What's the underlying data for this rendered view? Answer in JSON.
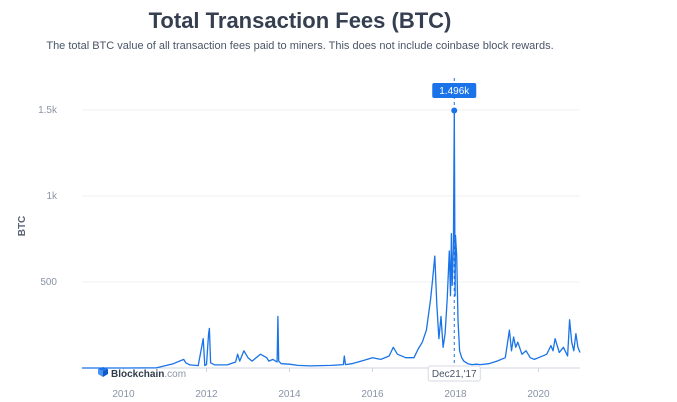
{
  "title": "Total Transaction Fees (BTC)",
  "subtitle": "The total BTC value of all transaction fees paid to miners. This does not include coinbase block rewards.",
  "brand": {
    "name": "Blockchain",
    "suffix": ".com",
    "logo": "blockchain-cube-icon"
  },
  "colors": {
    "line": "#1a73e8",
    "tooltip": "#1a73e8",
    "grid": "#eef0f3",
    "axis": "#cfd5dd"
  },
  "tooltip": {
    "value_label": "1.496k",
    "date_label": "Dec21,'17"
  },
  "chart_data": {
    "type": "line",
    "ylabel": "BTC",
    "xlabel": "",
    "xlim": [
      2009.0,
      2021.0
    ],
    "ylim": [
      0,
      1650
    ],
    "x_ticks": [
      2010,
      2012,
      2014,
      2016,
      2018,
      2020
    ],
    "x_tick_labels": [
      "2010",
      "2012",
      "2014",
      "2016",
      "2018",
      "2020"
    ],
    "y_ticks": [
      500,
      1000,
      1500
    ],
    "y_tick_labels": [
      "500",
      "1k",
      "1.5k"
    ],
    "grid": true,
    "series": [
      {
        "x": [
          2009.0,
          2010.0,
          2010.8,
          2011.2,
          2011.45,
          2011.5,
          2011.6,
          2011.8,
          2011.92,
          2011.96,
          2012.0,
          2012.05,
          2012.07,
          2012.1,
          2012.2,
          2012.5,
          2012.7,
          2012.75,
          2012.8,
          2012.9,
          2013.0,
          2013.1,
          2013.3,
          2013.45,
          2013.5,
          2013.6,
          2013.7,
          2013.72,
          2013.74,
          2013.8,
          2014.0,
          2014.2,
          2014.5,
          2015.0,
          2015.3,
          2015.32,
          2015.35,
          2015.5,
          2015.8,
          2016.0,
          2016.2,
          2016.4,
          2016.5,
          2016.6,
          2016.8,
          2017.0,
          2017.1,
          2017.2,
          2017.3,
          2017.4,
          2017.45,
          2017.5,
          2017.55,
          2017.6,
          2017.65,
          2017.7,
          2017.75,
          2017.8,
          2017.85,
          2017.88,
          2017.9,
          2017.92,
          2017.95,
          2017.97,
          2017.99,
          2018.0,
          2018.03,
          2018.06,
          2018.1,
          2018.15,
          2018.2,
          2018.3,
          2018.4,
          2018.5,
          2018.6,
          2018.8,
          2019.0,
          2019.2,
          2019.3,
          2019.35,
          2019.4,
          2019.45,
          2019.5,
          2019.6,
          2019.7,
          2019.8,
          2019.9,
          2020.0,
          2020.2,
          2020.3,
          2020.35,
          2020.4,
          2020.5,
          2020.6,
          2020.7,
          2020.75,
          2020.8,
          2020.85,
          2020.9,
          2020.95,
          2021.0
        ],
        "y": [
          0,
          0,
          1,
          25,
          50,
          30,
          18,
          14,
          170,
          14,
          20,
          200,
          230,
          30,
          18,
          18,
          35,
          80,
          40,
          100,
          60,
          40,
          80,
          60,
          40,
          50,
          35,
          300,
          40,
          25,
          22,
          15,
          12,
          15,
          20,
          70,
          20,
          25,
          45,
          60,
          50,
          70,
          120,
          80,
          60,
          60,
          110,
          150,
          220,
          400,
          520,
          650,
          370,
          170,
          300,
          120,
          200,
          400,
          680,
          420,
          780,
          480,
          700,
          1496,
          420,
          770,
          650,
          280,
          100,
          60,
          40,
          25,
          20,
          22,
          20,
          25,
          40,
          60,
          220,
          100,
          180,
          120,
          150,
          80,
          100,
          60,
          50,
          60,
          80,
          130,
          100,
          170,
          90,
          120,
          70,
          280,
          150,
          100,
          200,
          120,
          90
        ]
      }
    ],
    "highlight": {
      "x": 2017.97,
      "y": 1496
    }
  }
}
